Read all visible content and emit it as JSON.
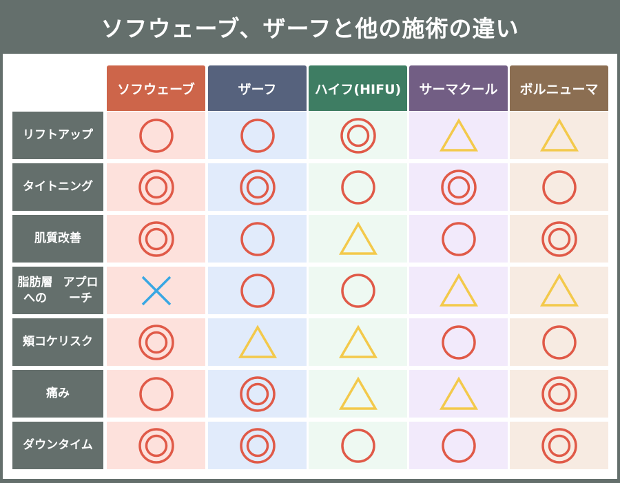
{
  "title": "ソフウェーブ、ザーフと他の施術の違い",
  "columns": [
    {
      "label": "ソフウェーブ",
      "head_color": "#cd654a",
      "cell_color": "#fde1dc"
    },
    {
      "label": "ザーフ",
      "head_color": "#56627d",
      "cell_color": "#e1ebfb"
    },
    {
      "label": "ハイフ(HIFU)",
      "head_color": "#3e7d63",
      "cell_color": "#eef9f2"
    },
    {
      "label": "サーマクール",
      "head_color": "#725e84",
      "cell_color": "#f2eafb"
    },
    {
      "label": "ボルニューマ",
      "head_color": "#8b6e52",
      "cell_color": "#f7ebe2"
    }
  ],
  "rows": [
    {
      "label": "リフトアップ",
      "marks": [
        "circle",
        "circle",
        "double-circle",
        "triangle",
        "triangle"
      ]
    },
    {
      "label": "タイトニング",
      "marks": [
        "double-circle",
        "double-circle",
        "circle",
        "double-circle",
        "circle"
      ]
    },
    {
      "label": "肌質改善",
      "marks": [
        "double-circle",
        "circle",
        "triangle",
        "circle",
        "double-circle"
      ]
    },
    {
      "label": "脂肪層へのアプローチ",
      "marks": [
        "cross",
        "circle",
        "circle",
        "triangle",
        "triangle"
      ]
    },
    {
      "label": "頬コケリスク",
      "marks": [
        "double-circle",
        "triangle",
        "triangle",
        "circle",
        "circle"
      ]
    },
    {
      "label": "痛み",
      "marks": [
        "circle",
        "double-circle",
        "triangle",
        "triangle",
        "double-circle"
      ]
    },
    {
      "label": "ダウンタイム",
      "marks": [
        "double-circle",
        "double-circle",
        "circle",
        "circle",
        "double-circle"
      ]
    }
  ],
  "symbol_colors": {
    "circle": "#e05a48",
    "double-circle": "#e05a48",
    "triangle": "#f3c94b",
    "cross": "#39a7e3"
  }
}
